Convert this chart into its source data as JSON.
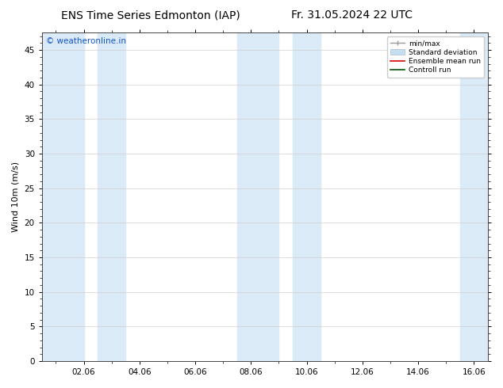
{
  "title_left": "ENS Time Series Edmonton (IAP)",
  "title_right": "Fr. 31.05.2024 22 UTC",
  "ylabel": "Wind 10m (m/s)",
  "watermark": "© weatheronline.in",
  "ylim": [
    0,
    47.5
  ],
  "yticks": [
    0,
    5,
    10,
    15,
    20,
    25,
    30,
    35,
    40,
    45
  ],
  "x_tick_labels": [
    "02.06",
    "04.06",
    "06.06",
    "08.06",
    "10.06",
    "12.06",
    "14.06",
    "16.06"
  ],
  "x_tick_positions": [
    2,
    4,
    6,
    8,
    10,
    12,
    14,
    16
  ],
  "x_lim": [
    0.5,
    16.5
  ],
  "shaded_bands": [
    [
      0.5,
      2.0
    ],
    [
      2.5,
      3.5
    ],
    [
      7.5,
      9.0
    ],
    [
      9.5,
      10.5
    ],
    [
      15.5,
      16.5
    ]
  ],
  "band_color": "#daeaf7",
  "background_color": "#ffffff",
  "plot_bg_color": "#ffffff",
  "legend_items": [
    {
      "label": "min/max",
      "color": "#999999",
      "lw": 1.2
    },
    {
      "label": "Standard deviation",
      "color": "#c5dff0",
      "lw": 8
    },
    {
      "label": "Ensemble mean run",
      "color": "#dd0000",
      "lw": 1.2
    },
    {
      "label": "Controll run",
      "color": "#005500",
      "lw": 1.2
    }
  ],
  "title_fontsize": 10,
  "label_fontsize": 8,
  "tick_fontsize": 7.5,
  "watermark_color": "#1155cc",
  "watermark_fontsize": 7.5
}
